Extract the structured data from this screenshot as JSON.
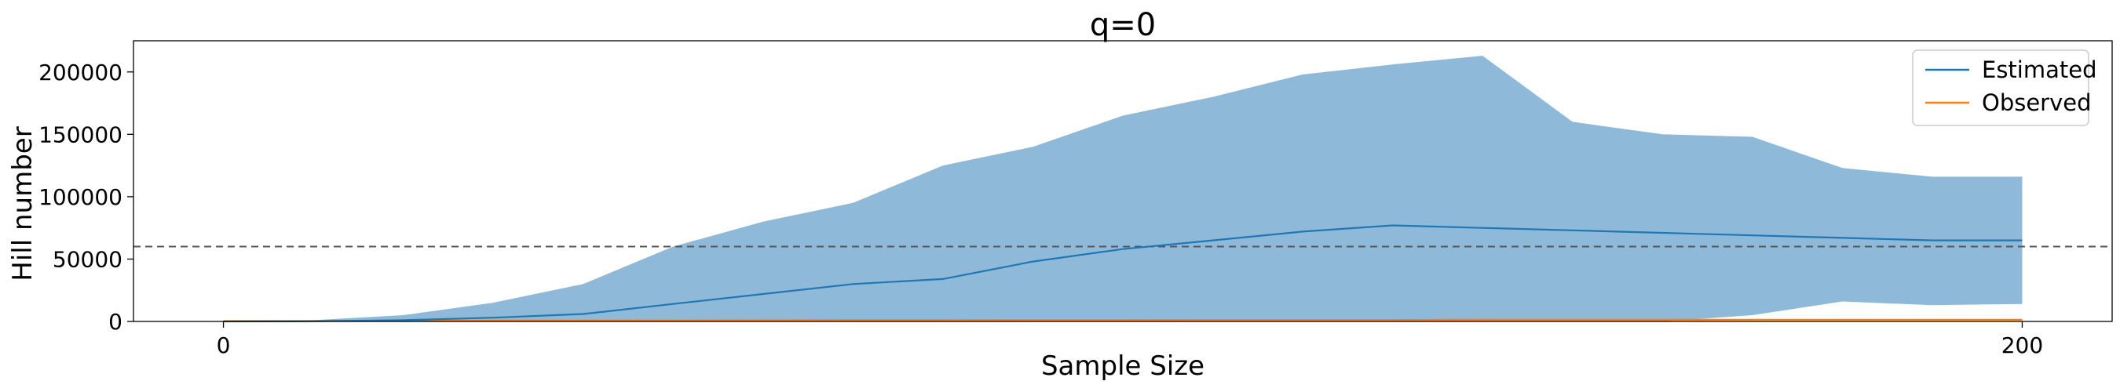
{
  "chart_data": {
    "type": "line",
    "title": "q=0",
    "xlabel": "Sample Size",
    "ylabel": "Hill number",
    "xlim": [
      -10,
      210
    ],
    "ylim": [
      0,
      225000
    ],
    "xticks": [
      0,
      200
    ],
    "xtick_labels": [
      "0",
      "200"
    ],
    "yticks": [
      0,
      50000,
      100000,
      150000,
      200000
    ],
    "ytick_labels": [
      "0",
      "50000",
      "100000",
      "150000",
      "200000"
    ],
    "grid": false,
    "legend_position": "top-right",
    "reference_line": {
      "y": 60000,
      "style": "dashed",
      "color": "#555555"
    },
    "colors": {
      "estimated": "#1f77b4",
      "band": "#8fb9d9",
      "observed": "#ff7f0e"
    },
    "x": [
      0,
      10,
      20,
      30,
      40,
      50,
      60,
      70,
      80,
      90,
      100,
      110,
      120,
      130,
      140,
      150,
      160,
      170,
      180,
      190,
      200
    ],
    "series": [
      {
        "name": "Estimated",
        "values": [
          0,
          200,
          1000,
          3000,
          6000,
          14000,
          22000,
          30000,
          34000,
          48000,
          58000,
          65000,
          72000,
          77000,
          75000,
          73000,
          71000,
          69000,
          67000,
          65000,
          65000
        ]
      },
      {
        "name": "Observed",
        "values": [
          300,
          400,
          500,
          600,
          700,
          800,
          900,
          1000,
          1000,
          1100,
          1100,
          1200,
          1200,
          1200,
          1300,
          1300,
          1300,
          1400,
          1400,
          1400,
          1400
        ]
      }
    ],
    "band": {
      "lower": [
        0,
        0,
        0,
        0,
        0,
        0,
        0,
        0,
        0,
        0,
        0,
        0,
        0,
        0,
        0,
        0,
        0,
        5000,
        16000,
        13000,
        14000
      ],
      "upper": [
        0,
        1000,
        5000,
        15000,
        30000,
        60000,
        80000,
        95000,
        125000,
        140000,
        165000,
        180000,
        198000,
        206000,
        213000,
        160000,
        150000,
        148000,
        123000,
        116000,
        116000
      ]
    }
  }
}
